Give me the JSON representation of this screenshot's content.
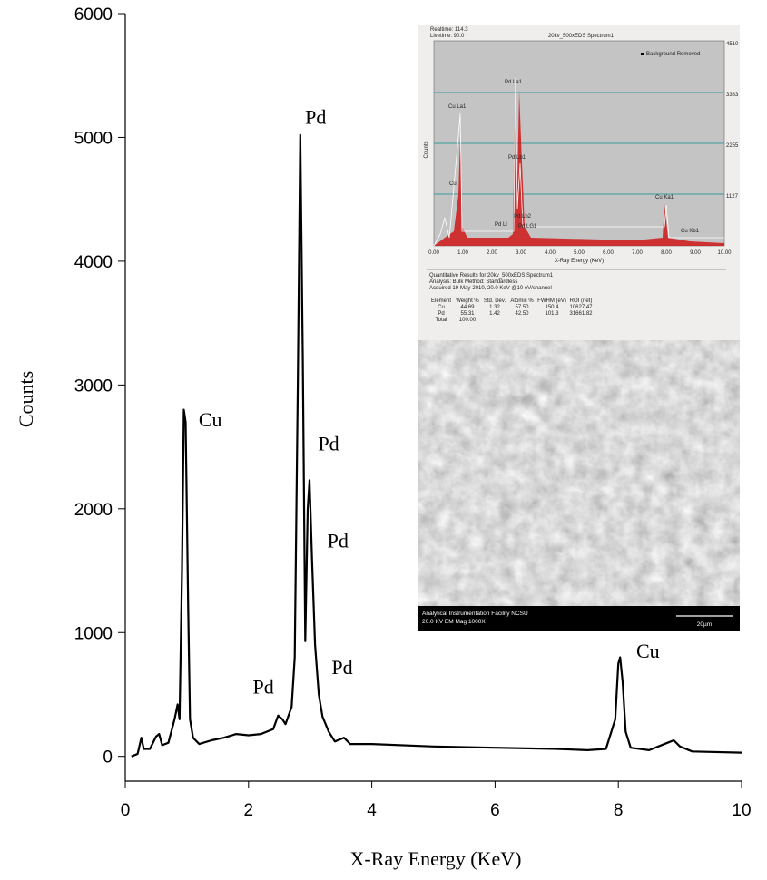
{
  "chart_data": {
    "type": "line",
    "xlabel": "X-Ray Energy (KeV)",
    "ylabel": "Counts",
    "xlim": [
      0,
      10
    ],
    "xticks": [
      0,
      2,
      4,
      6,
      8,
      10
    ],
    "ylim": [
      -200,
      6000
    ],
    "yticks": [
      0,
      1000,
      2000,
      3000,
      4000,
      5000,
      6000
    ],
    "color": "#000000",
    "grid": false,
    "x": [
      0.1,
      0.2,
      0.26,
      0.3,
      0.4,
      0.5,
      0.55,
      0.6,
      0.7,
      0.8,
      0.85,
      0.88,
      0.92,
      0.95,
      0.98,
      1.02,
      1.05,
      1.1,
      1.2,
      1.4,
      1.6,
      1.8,
      2.0,
      2.2,
      2.4,
      2.48,
      2.55,
      2.6,
      2.7,
      2.75,
      2.8,
      2.84,
      2.88,
      2.92,
      2.96,
      2.99,
      3.03,
      3.08,
      3.14,
      3.2,
      3.25,
      3.3,
      3.4,
      3.55,
      3.65,
      4.0,
      5.0,
      6.0,
      7.0,
      7.5,
      7.8,
      7.95,
      8.0,
      8.03,
      8.07,
      8.12,
      8.2,
      8.5,
      8.8,
      8.9,
      9.0,
      9.2,
      10.0
    ],
    "values": [
      0,
      20,
      150,
      60,
      60,
      160,
      180,
      90,
      110,
      300,
      420,
      300,
      1500,
      2800,
      2700,
      1200,
      300,
      150,
      100,
      130,
      150,
      180,
      170,
      180,
      220,
      330,
      300,
      260,
      400,
      800,
      3000,
      5020,
      3200,
      930,
      2000,
      2230,
      1600,
      900,
      500,
      320,
      260,
      200,
      120,
      150,
      100,
      100,
      80,
      70,
      60,
      50,
      60,
      300,
      750,
      800,
      600,
      200,
      70,
      50,
      110,
      130,
      80,
      40,
      30
    ],
    "annotations": [
      {
        "text": "Pd",
        "x": 3.09,
        "y": 5170
      },
      {
        "text": "Cu",
        "x": 1.38,
        "y": 2725
      },
      {
        "text": "Pd",
        "x": 3.3,
        "y": 2530
      },
      {
        "text": "Pd",
        "x": 3.45,
        "y": 1745
      },
      {
        "text": "Pd",
        "x": 2.24,
        "y": 565
      },
      {
        "text": "Pd",
        "x": 3.52,
        "y": 725
      },
      {
        "text": "Cu",
        "x": 8.48,
        "y": 857
      }
    ]
  },
  "inset": {
    "realtime": "Realtime: 114.3",
    "livetime": "Livetime: 90.0",
    "title": "20kv_500xEDS Spectrum1",
    "legend": "Background Removed",
    "ylabel": "Counts",
    "xlabel": "X-Ray Energy (KeV)",
    "yticks": [
      "4510",
      "3383",
      "2255",
      "1127"
    ],
    "xticks": [
      "0.00",
      "1.00",
      "2.00",
      "3.00",
      "4.00",
      "5.00",
      "6.00",
      "7.00",
      "8.00",
      "9.00",
      "10.00"
    ],
    "peaks": [
      "Pd La1",
      "Cu La1",
      "Pd Lb1",
      "Cu",
      "Pd Ll",
      "Pd Lb2",
      "Pd LG1",
      "Cu Ka1",
      "Cu Kb1"
    ],
    "results": [
      "Quantitative Results for 20kv_500xEDS Spectrum1",
      "Analysis: Bulk    Method: Standardless",
      "Acquired 19-May-2010, 20.0 KeV @10 eV/channel"
    ],
    "table": [
      [
        "Element",
        "Weight %",
        "Std. Dev.",
        "Atomic %",
        "FWHM (eV)",
        "ROI (net)"
      ],
      [
        "Cu",
        "44.69",
        "1.32",
        "57.50",
        "150.4",
        "10627.47"
      ],
      [
        "Pd",
        "55.31",
        "1.42",
        "42.50",
        "101.3",
        "31661.82"
      ],
      [
        "Total",
        "100.00",
        "",
        "",
        "",
        ""
      ]
    ],
    "sem_caption": [
      "Analytical Instrumentation Facility NCSU",
      "20.0 KV EM Mag 1000X"
    ],
    "scale_bar": "20µm"
  }
}
